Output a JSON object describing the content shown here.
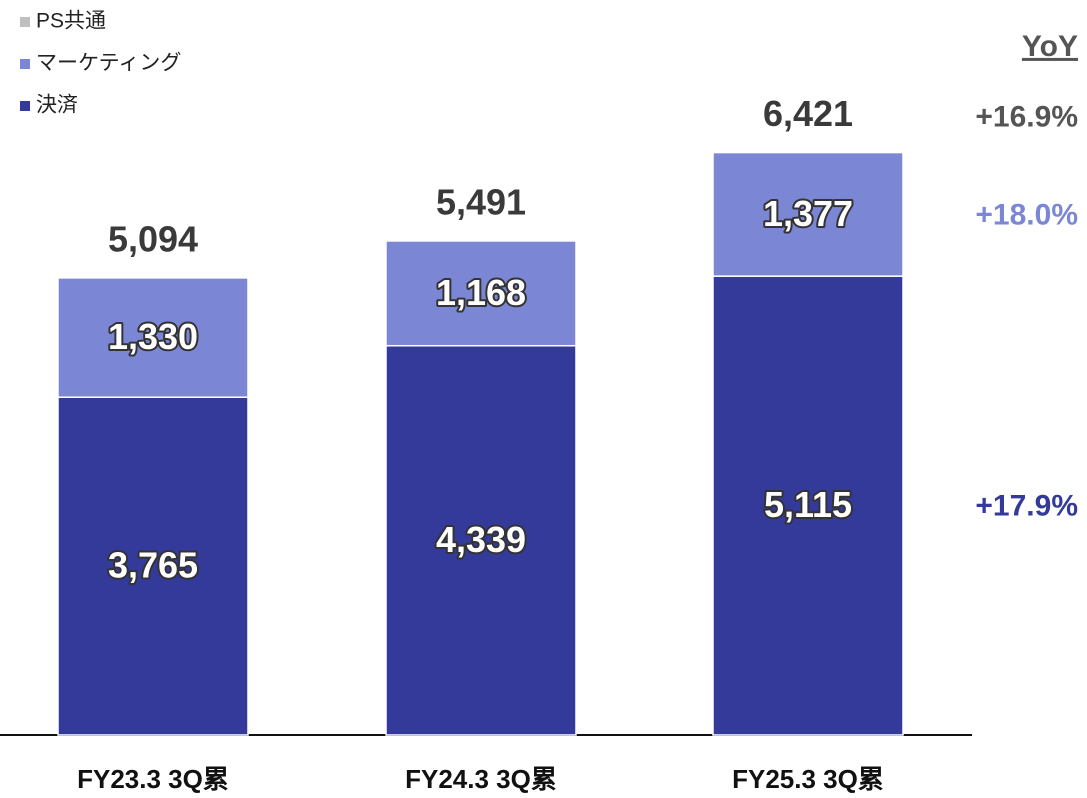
{
  "chart_data": {
    "type": "stacked_bar",
    "categories": [
      "FY23.3 3Q累",
      "FY24.3 3Q累",
      "FY25.3 3Q累"
    ],
    "series": [
      {
        "name": "決済",
        "color": "#343a9a",
        "values": [
          3765,
          4339,
          5115
        ],
        "value_labels": [
          "3,765",
          "4,339",
          "5,115"
        ],
        "yoy": "+17.9%"
      },
      {
        "name": "マーケティング",
        "color": "#7b86d4",
        "values": [
          1330,
          1168,
          1377
        ],
        "value_labels": [
          "1,330",
          "1,168",
          "1,377"
        ],
        "yoy": "+18.0%"
      },
      {
        "name": "PS共通",
        "color": "#bfbfbf",
        "values": [
          null,
          null,
          null
        ]
      }
    ],
    "totals": [
      5094,
      5491,
      6421
    ],
    "total_labels": [
      "5,094",
      "5,491",
      "6,421"
    ],
    "yoy_title": "YoY",
    "total_yoy": "+16.9%",
    "ylim": [
      0,
      7000
    ]
  }
}
